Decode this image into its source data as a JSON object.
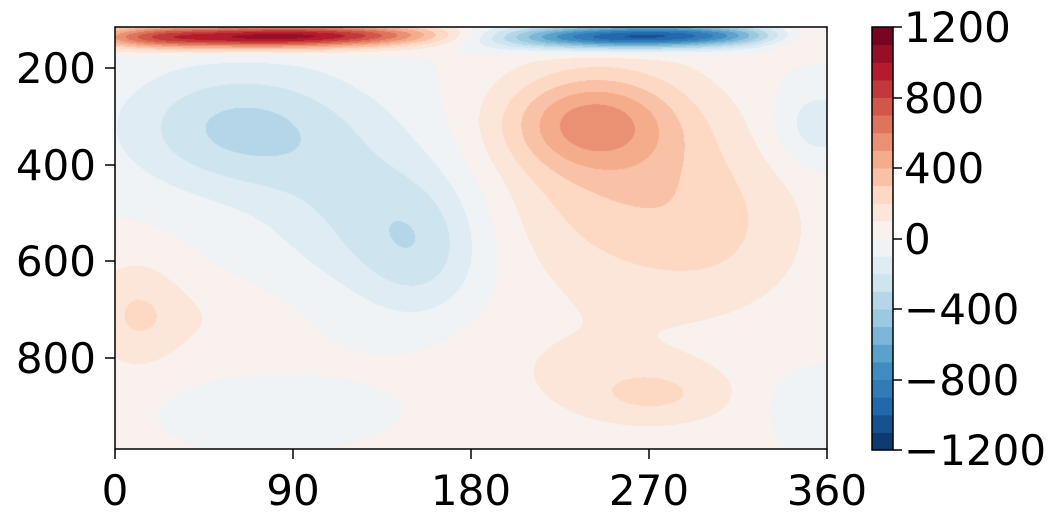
{
  "chart_data": {
    "type": "heatmap",
    "subtype": "filled-contour",
    "title": "",
    "xlabel": "",
    "ylabel": "",
    "x_ticks": [
      0,
      90,
      180,
      270,
      360
    ],
    "x_tick_labels": [
      "0",
      "90",
      "180",
      "270",
      "360"
    ],
    "xlim": [
      0,
      360
    ],
    "y_ticks": [
      200,
      400,
      600,
      800
    ],
    "y_tick_labels": [
      "200",
      "400",
      "600",
      "800"
    ],
    "ylim": [
      1000,
      125
    ],
    "y_inverted": true,
    "colormap": "RdBu_r",
    "colorbar": {
      "range": [
        -1200,
        1200
      ],
      "ticks": [
        1200,
        800,
        400,
        0,
        -400,
        -800,
        -1200
      ],
      "tick_labels": [
        "1200",
        "800",
        "400",
        "0",
        "−400",
        "−800",
        "−1200"
      ],
      "levels": 24,
      "placement": "right"
    },
    "features": [
      {
        "x": 65,
        "y": 145,
        "value": 950,
        "sx": 50,
        "sy": 18
      },
      {
        "x": 130,
        "y": 140,
        "value": 400,
        "sx": 40,
        "sy": 16
      },
      {
        "x": 20,
        "y": 145,
        "value": 200,
        "sx": 18,
        "sy": 16
      },
      {
        "x": 250,
        "y": 145,
        "value": -900,
        "sx": 45,
        "sy": 18
      },
      {
        "x": 300,
        "y": 140,
        "value": -400,
        "sx": 35,
        "sy": 16
      },
      {
        "x": 350,
        "y": 145,
        "value": 250,
        "sx": 18,
        "sy": 22
      },
      {
        "x": 60,
        "y": 330,
        "value": -280,
        "sx": 40,
        "sy": 90
      },
      {
        "x": 100,
        "y": 380,
        "value": -80,
        "sx": 45,
        "sy": 110
      },
      {
        "x": 130,
        "y": 520,
        "value": -180,
        "sx": 35,
        "sy": 110
      },
      {
        "x": 155,
        "y": 600,
        "value": -180,
        "sx": 22,
        "sy": 100
      },
      {
        "x": 240,
        "y": 320,
        "value": 380,
        "sx": 30,
        "sy": 70
      },
      {
        "x": 255,
        "y": 440,
        "value": 260,
        "sx": 45,
        "sy": 170
      },
      {
        "x": 310,
        "y": 560,
        "value": 130,
        "sx": 35,
        "sy": 130
      },
      {
        "x": 355,
        "y": 330,
        "value": -180,
        "sx": 15,
        "sy": 60
      },
      {
        "x": 10,
        "y": 720,
        "value": 180,
        "sx": 18,
        "sy": 90
      },
      {
        "x": 45,
        "y": 730,
        "value": 70,
        "sx": 30,
        "sy": 55
      },
      {
        "x": 275,
        "y": 890,
        "value": 180,
        "sx": 30,
        "sy": 50
      },
      {
        "x": 230,
        "y": 850,
        "value": 60,
        "sx": 40,
        "sy": 80
      },
      {
        "x": 80,
        "y": 910,
        "value": -50,
        "sx": 35,
        "sy": 30
      },
      {
        "x": 350,
        "y": 900,
        "value": -70,
        "sx": 15,
        "sy": 40
      },
      {
        "x": 200,
        "y": 790,
        "value": 30,
        "sx": 60,
        "sy": 80
      }
    ]
  }
}
